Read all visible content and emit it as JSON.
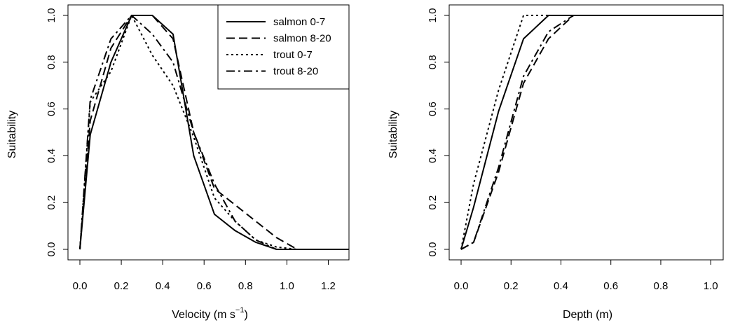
{
  "chart_data": [
    {
      "type": "line",
      "xlabel": "Velocity (m s⁻¹)",
      "xlabel_main": "Velocity (m s",
      "xlabel_sup": "−1",
      "xlabel_close": ")",
      "ylabel": "Suitability",
      "xlim": [
        0,
        1.3
      ],
      "ylim": [
        0,
        1.0
      ],
      "xticks": [
        "0.0",
        "0.2",
        "0.4",
        "0.6",
        "0.8",
        "1.0",
        "1.2"
      ],
      "yticks": [
        "0.0",
        "0.2",
        "0.4",
        "0.6",
        "0.8",
        "1.0"
      ],
      "legend_position": "top-right",
      "series": [
        {
          "name": "salmon 0-7",
          "dash": "solid",
          "x": [
            0,
            0.05,
            0.15,
            0.25,
            0.35,
            0.45,
            0.55,
            0.65,
            0.75,
            0.85,
            0.95,
            1.05,
            1.3
          ],
          "y": [
            0,
            0.49,
            0.8,
            1.0,
            1.0,
            0.92,
            0.4,
            0.15,
            0.08,
            0.03,
            0.0,
            0.0,
            0.0
          ]
        },
        {
          "name": "salmon 8-20",
          "dash": "dashed",
          "x": [
            0,
            0.05,
            0.15,
            0.25,
            0.35,
            0.45,
            0.55,
            0.65,
            0.75,
            0.85,
            0.95,
            1.05,
            1.3
          ],
          "y": [
            0,
            0.55,
            0.86,
            1.0,
            1.0,
            0.9,
            0.5,
            0.26,
            0.19,
            0.12,
            0.05,
            0.0,
            0.0
          ]
        },
        {
          "name": "trout 0-7",
          "dash": "dotted",
          "x": [
            0,
            0.05,
            0.15,
            0.25,
            0.35,
            0.45,
            0.55,
            0.65,
            0.75,
            0.85,
            0.95,
            1.05,
            1.3
          ],
          "y": [
            0,
            0.63,
            0.76,
            1.0,
            0.83,
            0.7,
            0.48,
            0.22,
            0.12,
            0.04,
            0.01,
            0.0,
            0.0
          ]
        },
        {
          "name": "trout 8-20",
          "dash": "dashdot",
          "x": [
            0,
            0.05,
            0.15,
            0.25,
            0.35,
            0.45,
            0.55,
            0.65,
            0.75,
            0.85,
            0.95,
            1.05,
            1.3
          ],
          "y": [
            0,
            0.64,
            0.9,
            1.0,
            0.92,
            0.8,
            0.5,
            0.28,
            0.12,
            0.04,
            0.0,
            0.0,
            0.0
          ]
        }
      ]
    },
    {
      "type": "line",
      "xlabel": "Depth (m)",
      "ylabel": "Suitability",
      "xlim": [
        0,
        1.05
      ],
      "ylim": [
        0,
        1.0
      ],
      "xticks": [
        "0.0",
        "0.2",
        "0.4",
        "0.6",
        "0.8",
        "1.0"
      ],
      "yticks": [
        "0.0",
        "0.2",
        "0.4",
        "0.6",
        "0.8",
        "1.0"
      ],
      "series": [
        {
          "name": "salmon 0-7",
          "dash": "solid",
          "x": [
            0,
            0.05,
            0.15,
            0.25,
            0.35,
            0.45,
            1.05
          ],
          "y": [
            0,
            0.18,
            0.59,
            0.9,
            1.0,
            1.0,
            1.0
          ]
        },
        {
          "name": "salmon 8-20",
          "dash": "dashed",
          "x": [
            0,
            0.05,
            0.15,
            0.25,
            0.35,
            0.45,
            1.05
          ],
          "y": [
            0,
            0.03,
            0.33,
            0.71,
            0.9,
            1.0,
            1.0
          ]
        },
        {
          "name": "trout 0-7",
          "dash": "dotted",
          "x": [
            0,
            0.05,
            0.15,
            0.25,
            0.35,
            1.05
          ],
          "y": [
            0,
            0.28,
            0.68,
            1.0,
            1.0,
            1.0
          ]
        },
        {
          "name": "trout 8-20",
          "dash": "dashdot",
          "x": [
            0,
            0.05,
            0.15,
            0.25,
            0.35,
            0.45,
            1.05
          ],
          "y": [
            0,
            0.03,
            0.35,
            0.74,
            0.93,
            1.0,
            1.0
          ]
        }
      ]
    }
  ]
}
